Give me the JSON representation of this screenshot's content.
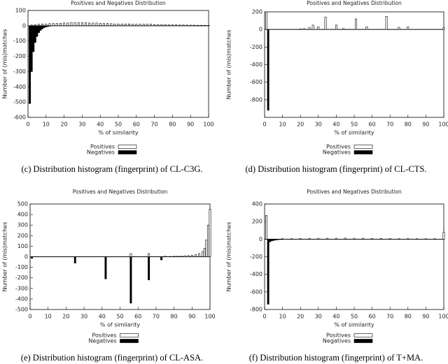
{
  "chart_data": [
    {
      "type": "bar",
      "title": "Positives and Negatives Distribution",
      "xlabel": "% of similarity",
      "ylabel": "Number of (mis)matches",
      "caption": "(c) Distribution histogram (fingerprint) of CL-C3G.",
      "xlim": [
        0,
        100
      ],
      "xticks": [
        0,
        10,
        20,
        30,
        40,
        50,
        60,
        70,
        80,
        90,
        100
      ],
      "ylim": [
        -600,
        100
      ],
      "yticks": [
        -600,
        -500,
        -400,
        -300,
        -200,
        -100,
        0,
        100
      ],
      "series": [
        {
          "name": "Positives",
          "color": "#ffffff",
          "x": [
            2,
            4,
            6,
            8,
            10,
            12,
            14,
            16,
            18,
            20,
            22,
            24,
            26,
            28,
            30,
            32,
            34,
            36,
            38,
            40,
            42,
            44,
            46,
            48,
            50,
            52,
            54,
            56,
            58,
            60,
            62,
            64,
            66,
            68,
            70,
            72,
            74,
            76,
            78,
            80,
            82,
            84,
            86,
            88,
            90,
            92,
            94,
            96,
            98,
            100
          ],
          "values": [
            5,
            8,
            10,
            12,
            12,
            14,
            15,
            15,
            16,
            18,
            18,
            20,
            20,
            20,
            20,
            20,
            18,
            18,
            18,
            16,
            15,
            15,
            14,
            12,
            12,
            12,
            12,
            12,
            10,
            10,
            10,
            10,
            10,
            10,
            8,
            8,
            8,
            8,
            6,
            6,
            6,
            5,
            5,
            5,
            4,
            4,
            3,
            3,
            3,
            2
          ]
        },
        {
          "name": "Negatives",
          "color": "#000000",
          "x": [
            1,
            2,
            3,
            4,
            5,
            6,
            7,
            8,
            9,
            10,
            11,
            12
          ],
          "values": [
            -510,
            -300,
            -170,
            -110,
            -70,
            -45,
            -30,
            -20,
            -12,
            -8,
            -5,
            -3
          ]
        }
      ]
    },
    {
      "type": "bar",
      "title": "Positives and Negatives Distribution",
      "xlabel": "% of similarity",
      "ylabel": "Number of (mis)matches",
      "caption": "(d) Distribution histogram (fingerprint) of CL-CTS.",
      "xlim": [
        0,
        100
      ],
      "xticks": [
        0,
        10,
        20,
        30,
        40,
        50,
        60,
        70,
        80,
        90,
        100
      ],
      "ylim": [
        -1000,
        200
      ],
      "yticks": [
        -800,
        -600,
        -400,
        -200,
        0,
        200
      ],
      "series": [
        {
          "name": "Positives",
          "color": "#ffffff",
          "x": [
            1,
            20,
            22,
            25,
            27,
            30,
            34,
            40,
            44,
            51,
            57,
            68,
            75,
            80,
            100
          ],
          "values": [
            200,
            5,
            10,
            20,
            50,
            30,
            140,
            50,
            10,
            120,
            30,
            150,
            25,
            30,
            20
          ]
        },
        {
          "name": "Negatives",
          "color": "#000000",
          "x": [
            2
          ],
          "values": [
            -920
          ]
        }
      ]
    },
    {
      "type": "bar",
      "title": "Positives and Negatives Distribution",
      "xlabel": "% of similarity",
      "ylabel": "Number of (mis)matches",
      "caption": "(e) Distribution histogram (fingerprint) of CL-ASA.",
      "xlim": [
        0,
        100
      ],
      "xticks": [
        0,
        10,
        20,
        30,
        40,
        50,
        60,
        70,
        80,
        90,
        100
      ],
      "ylim": [
        -500,
        500
      ],
      "yticks": [
        -500,
        -400,
        -300,
        -200,
        -100,
        0,
        100,
        200,
        300,
        400,
        500
      ],
      "series": [
        {
          "name": "Positives",
          "color": "#ffffff",
          "x": [
            56,
            66,
            75,
            78,
            80,
            82,
            84,
            86,
            88,
            90,
            92,
            94,
            96,
            97,
            98,
            99,
            100
          ],
          "values": [
            30,
            30,
            5,
            3,
            5,
            5,
            8,
            10,
            12,
            15,
            20,
            30,
            50,
            80,
            160,
            300,
            450
          ]
        },
        {
          "name": "Negatives",
          "color": "#000000",
          "x": [
            1,
            25,
            42,
            56,
            66,
            73
          ],
          "values": [
            -15,
            -60,
            -210,
            -440,
            -220,
            -30
          ]
        }
      ]
    },
    {
      "type": "bar",
      "title": "Positives and Negatives Distribution",
      "xlabel": "% of similarity",
      "ylabel": "Number of (mis)matches",
      "caption": "(f) Distribution histogram (fingerprint) of T+MA.",
      "xlim": [
        0,
        100
      ],
      "xticks": [
        0,
        10,
        20,
        30,
        40,
        50,
        60,
        70,
        80,
        90,
        100
      ],
      "ylim": [
        -800,
        400
      ],
      "yticks": [
        -800,
        -600,
        -400,
        -200,
        0,
        200,
        400
      ],
      "series": [
        {
          "name": "Positives",
          "color": "#ffffff",
          "x": [
            1,
            10,
            15,
            20,
            25,
            30,
            35,
            40,
            45,
            50,
            55,
            60,
            65,
            70,
            75,
            80,
            85,
            90,
            95,
            100
          ],
          "values": [
            270,
            5,
            6,
            8,
            8,
            10,
            10,
            10,
            12,
            10,
            10,
            8,
            8,
            8,
            6,
            6,
            5,
            5,
            5,
            80
          ]
        },
        {
          "name": "Negatives",
          "color": "#000000",
          "x": [
            2,
            3,
            4,
            5,
            6,
            7,
            8,
            9,
            10
          ],
          "values": [
            -740,
            -30,
            -20,
            -15,
            -10,
            -8,
            -5,
            -5,
            -3
          ]
        }
      ]
    }
  ]
}
